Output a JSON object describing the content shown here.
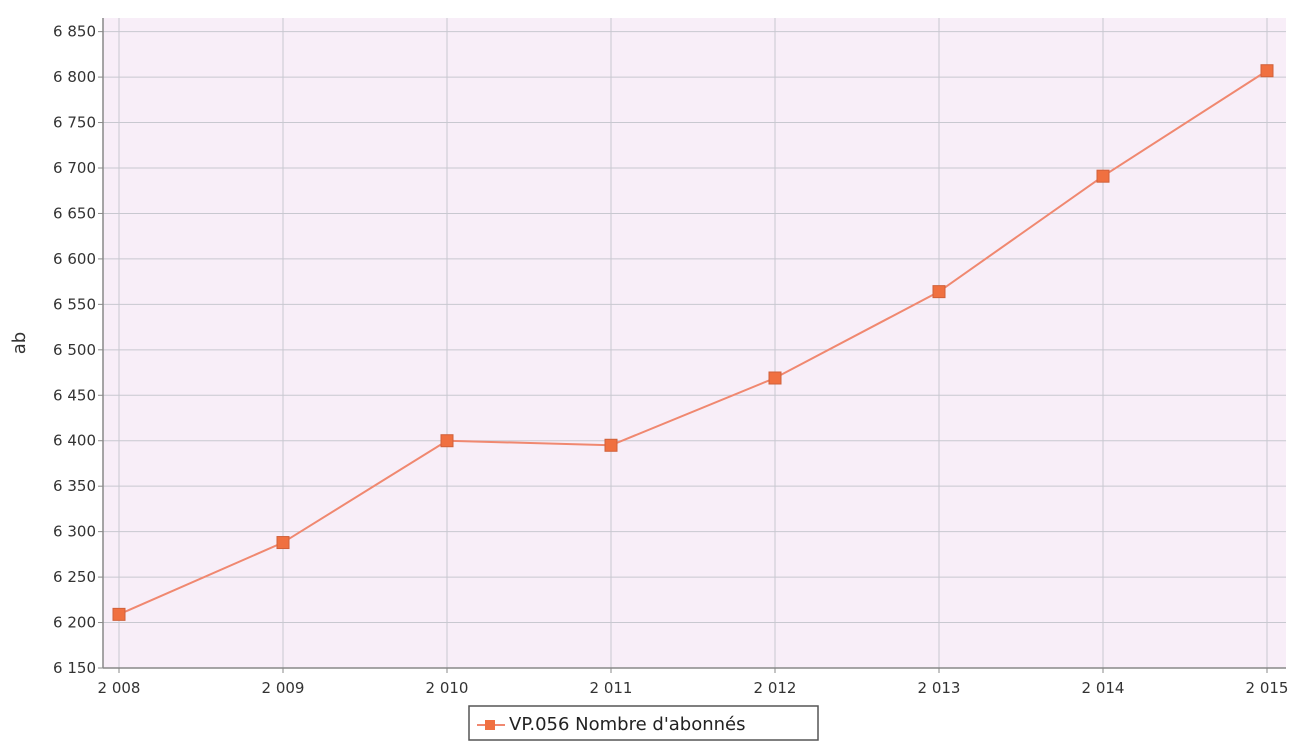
{
  "chart_data": {
    "type": "line",
    "title": "",
    "xlabel": "",
    "ylabel": "ab",
    "x": [
      "2 008",
      "2 009",
      "2 010",
      "2 011",
      "2 012",
      "2 013",
      "2 014",
      "2 015"
    ],
    "x_values": [
      2008,
      2009,
      2010,
      2011,
      2012,
      2013,
      2014,
      2015
    ],
    "series": [
      {
        "name": "VP.056 Nombre d'abonnés",
        "values": [
          6209,
          6288,
          6400,
          6395,
          6469,
          6564,
          6691,
          6807
        ],
        "color": "#f08870",
        "marker_color": "#f07040"
      }
    ],
    "y_ticks": [
      "6 150",
      "6 200",
      "6 250",
      "6 300",
      "6 350",
      "6 400",
      "6 450",
      "6 500",
      "6 550",
      "6 600",
      "6 650",
      "6 700",
      "6 750",
      "6 800",
      "6 850"
    ],
    "y_tick_values": [
      6150,
      6200,
      6250,
      6300,
      6350,
      6400,
      6450,
      6500,
      6550,
      6600,
      6650,
      6700,
      6750,
      6800,
      6850
    ],
    "ylim": [
      6150,
      6865
    ],
    "grid": true,
    "legend_position": "bottom-center",
    "colors": {
      "plot_background": "#f8eef8",
      "grid": "#c8c8d0",
      "axis": "#888888"
    }
  }
}
